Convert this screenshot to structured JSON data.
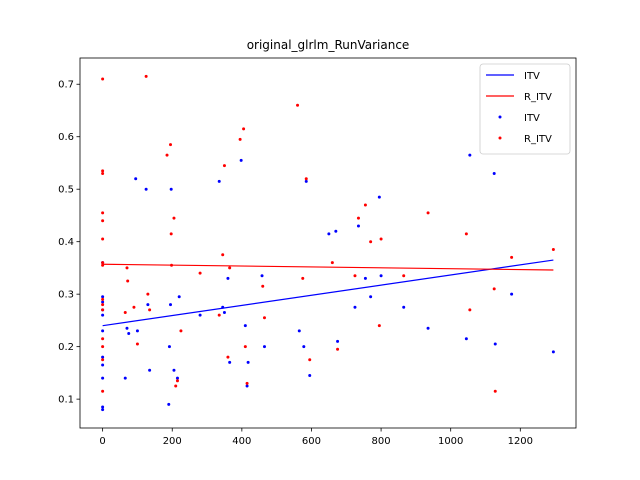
{
  "chart_data": {
    "type": "scatter",
    "title": "original_glrlm_RunVariance",
    "xlabel": "",
    "ylabel": "",
    "xlim": [
      -65,
      1360
    ],
    "ylim": [
      0.045,
      0.75
    ],
    "x_ticks": [
      0,
      200,
      400,
      600,
      800,
      1000,
      1200
    ],
    "y_ticks": [
      0.1,
      0.2,
      0.3,
      0.4,
      0.5,
      0.6,
      0.7
    ],
    "grid": false,
    "legend_placement": "top-right",
    "legend": [
      "ITV",
      "R_ITV",
      "ITV",
      "R_ITV"
    ],
    "colors": {
      "ITV": "#0000ff",
      "R_ITV": "#ff0000"
    },
    "series": [
      {
        "name": "ITV",
        "kind": "line",
        "color": "#0000ff",
        "points": [
          [
            0,
            0.24
          ],
          [
            1295,
            0.365
          ]
        ]
      },
      {
        "name": "R_ITV",
        "kind": "line",
        "color": "#ff0000",
        "points": [
          [
            0,
            0.357
          ],
          [
            1295,
            0.346
          ]
        ]
      },
      {
        "name": "ITV",
        "kind": "scatter",
        "color": "#0000ff",
        "points": [
          [
            0,
            0.08
          ],
          [
            0,
            0.085
          ],
          [
            0,
            0.14
          ],
          [
            0,
            0.165
          ],
          [
            0,
            0.18
          ],
          [
            0,
            0.23
          ],
          [
            0,
            0.26
          ],
          [
            0,
            0.27
          ],
          [
            0,
            0.285
          ],
          [
            0,
            0.295
          ],
          [
            0,
            0.36
          ],
          [
            65,
            0.14
          ],
          [
            70,
            0.235
          ],
          [
            75,
            0.225
          ],
          [
            95,
            0.52
          ],
          [
            100,
            0.23
          ],
          [
            125,
            0.5
          ],
          [
            130,
            0.28
          ],
          [
            135,
            0.155
          ],
          [
            190,
            0.09
          ],
          [
            192,
            0.2
          ],
          [
            195,
            0.28
          ],
          [
            197,
            0.5
          ],
          [
            205,
            0.155
          ],
          [
            215,
            0.14
          ],
          [
            220,
            0.295
          ],
          [
            280,
            0.26
          ],
          [
            335,
            0.515
          ],
          [
            345,
            0.275
          ],
          [
            350,
            0.265
          ],
          [
            360,
            0.33
          ],
          [
            365,
            0.17
          ],
          [
            398,
            0.555
          ],
          [
            410,
            0.24
          ],
          [
            415,
            0.125
          ],
          [
            418,
            0.17
          ],
          [
            458,
            0.335
          ],
          [
            465,
            0.2
          ],
          [
            565,
            0.23
          ],
          [
            578,
            0.2
          ],
          [
            585,
            0.515
          ],
          [
            595,
            0.145
          ],
          [
            650,
            0.415
          ],
          [
            670,
            0.42
          ],
          [
            675,
            0.21
          ],
          [
            725,
            0.275
          ],
          [
            735,
            0.43
          ],
          [
            755,
            0.33
          ],
          [
            770,
            0.295
          ],
          [
            795,
            0.485
          ],
          [
            800,
            0.335
          ],
          [
            865,
            0.275
          ],
          [
            935,
            0.235
          ],
          [
            1045,
            0.215
          ],
          [
            1055,
            0.565
          ],
          [
            1125,
            0.53
          ],
          [
            1128,
            0.205
          ],
          [
            1175,
            0.3
          ],
          [
            1295,
            0.19
          ]
        ]
      },
      {
        "name": "R_ITV",
        "kind": "scatter",
        "color": "#ff0000",
        "points": [
          [
            0,
            0.71
          ],
          [
            0,
            0.535
          ],
          [
            0,
            0.53
          ],
          [
            0,
            0.455
          ],
          [
            0,
            0.44
          ],
          [
            0,
            0.405
          ],
          [
            0,
            0.36
          ],
          [
            0,
            0.355
          ],
          [
            0,
            0.29
          ],
          [
            0,
            0.28
          ],
          [
            0,
            0.27
          ],
          [
            0,
            0.215
          ],
          [
            0,
            0.2
          ],
          [
            0,
            0.175
          ],
          [
            0,
            0.115
          ],
          [
            65,
            0.265
          ],
          [
            70,
            0.35
          ],
          [
            72,
            0.325
          ],
          [
            90,
            0.275
          ],
          [
            100,
            0.205
          ],
          [
            125,
            0.715
          ],
          [
            130,
            0.3
          ],
          [
            135,
            0.27
          ],
          [
            185,
            0.565
          ],
          [
            195,
            0.585
          ],
          [
            197,
            0.415
          ],
          [
            198,
            0.355
          ],
          [
            205,
            0.445
          ],
          [
            210,
            0.125
          ],
          [
            215,
            0.135
          ],
          [
            225,
            0.23
          ],
          [
            280,
            0.34
          ],
          [
            335,
            0.26
          ],
          [
            345,
            0.375
          ],
          [
            350,
            0.545
          ],
          [
            360,
            0.18
          ],
          [
            365,
            0.35
          ],
          [
            395,
            0.595
          ],
          [
            405,
            0.615
          ],
          [
            410,
            0.2
          ],
          [
            415,
            0.13
          ],
          [
            460,
            0.315
          ],
          [
            465,
            0.255
          ],
          [
            560,
            0.66
          ],
          [
            575,
            0.33
          ],
          [
            585,
            0.52
          ],
          [
            595,
            0.175
          ],
          [
            660,
            0.36
          ],
          [
            675,
            0.195
          ],
          [
            725,
            0.335
          ],
          [
            735,
            0.445
          ],
          [
            755,
            0.47
          ],
          [
            770,
            0.4
          ],
          [
            795,
            0.24
          ],
          [
            800,
            0.405
          ],
          [
            865,
            0.335
          ],
          [
            935,
            0.455
          ],
          [
            1045,
            0.415
          ],
          [
            1055,
            0.27
          ],
          [
            1125,
            0.31
          ],
          [
            1128,
            0.115
          ],
          [
            1175,
            0.37
          ],
          [
            1295,
            0.385
          ]
        ]
      }
    ]
  }
}
